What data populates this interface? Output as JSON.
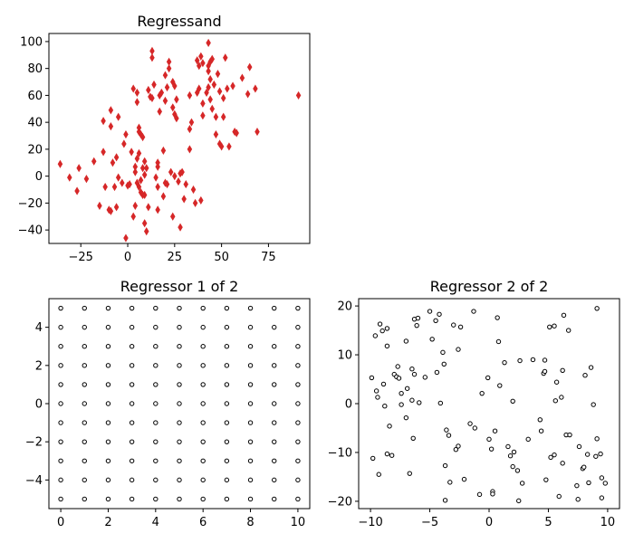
{
  "chart_data": [
    {
      "type": "scatter",
      "title": "Regressand",
      "xlabel": "",
      "ylabel": "",
      "xlim": [
        -42,
        97
      ],
      "ylim": [
        -50,
        106
      ],
      "xticks": [
        -25,
        0,
        25,
        50,
        75
      ],
      "yticks": [
        -40,
        -20,
        0,
        20,
        40,
        60,
        80,
        100
      ],
      "marker": "thin-diamond",
      "color": "#d62728",
      "edge_color": "#d62728",
      "grid": false,
      "points": [
        [
          -36,
          9
        ],
        [
          -31,
          -1
        ],
        [
          -27,
          -11
        ],
        [
          -26,
          6
        ],
        [
          -22,
          -2
        ],
        [
          -18,
          11
        ],
        [
          -15,
          -22
        ],
        [
          -13,
          18
        ],
        [
          -13,
          41
        ],
        [
          -12,
          -8
        ],
        [
          -10,
          -25
        ],
        [
          -9,
          -26
        ],
        [
          -9,
          37
        ],
        [
          -9,
          49
        ],
        [
          -8,
          10
        ],
        [
          -7,
          -8
        ],
        [
          -6,
          -23
        ],
        [
          -6,
          14
        ],
        [
          -5,
          -1
        ],
        [
          -5,
          44
        ],
        [
          -3,
          -5
        ],
        [
          -2,
          24
        ],
        [
          -1,
          -46
        ],
        [
          -1,
          31
        ],
        [
          0,
          -7
        ],
        [
          1,
          -6
        ],
        [
          2,
          18
        ],
        [
          3,
          -30
        ],
        [
          3,
          65
        ],
        [
          4,
          -22
        ],
        [
          4,
          3
        ],
        [
          4,
          7
        ],
        [
          5,
          -5
        ],
        [
          5,
          13
        ],
        [
          5,
          55
        ],
        [
          5,
          62
        ],
        [
          6,
          -8
        ],
        [
          6,
          17
        ],
        [
          6,
          33
        ],
        [
          6,
          36
        ],
        [
          7,
          -12
        ],
        [
          7,
          -3
        ],
        [
          7,
          31
        ],
        [
          8,
          6
        ],
        [
          8,
          -14
        ],
        [
          8,
          29
        ],
        [
          9,
          11
        ],
        [
          9,
          -35
        ],
        [
          9,
          -14
        ],
        [
          9,
          1
        ],
        [
          10,
          6
        ],
        [
          10,
          -41
        ],
        [
          11,
          -23
        ],
        [
          11,
          64
        ],
        [
          12,
          59
        ],
        [
          13,
          58
        ],
        [
          13,
          88
        ],
        [
          13,
          93
        ],
        [
          14,
          68
        ],
        [
          15,
          -1
        ],
        [
          16,
          7
        ],
        [
          16,
          -8
        ],
        [
          16,
          10
        ],
        [
          16,
          -25
        ],
        [
          17,
          48
        ],
        [
          17,
          60
        ],
        [
          18,
          62
        ],
        [
          19,
          19
        ],
        [
          19,
          -15
        ],
        [
          20,
          -5
        ],
        [
          20,
          56
        ],
        [
          20,
          75
        ],
        [
          21,
          -6
        ],
        [
          21,
          66
        ],
        [
          22,
          80
        ],
        [
          22,
          85
        ],
        [
          23,
          3
        ],
        [
          24,
          -30
        ],
        [
          24,
          51
        ],
        [
          24,
          70
        ],
        [
          25,
          46
        ],
        [
          25,
          0
        ],
        [
          25,
          67
        ],
        [
          26,
          57
        ],
        [
          26,
          43
        ],
        [
          27,
          -4
        ],
        [
          28,
          -38
        ],
        [
          28,
          2
        ],
        [
          29,
          3
        ],
        [
          30,
          -17
        ],
        [
          31,
          -6
        ],
        [
          33,
          20
        ],
        [
          33,
          35
        ],
        [
          33,
          60
        ],
        [
          34,
          40
        ],
        [
          35,
          -10
        ],
        [
          36,
          -20
        ],
        [
          37,
          62
        ],
        [
          37,
          86
        ],
        [
          38,
          82
        ],
        [
          38,
          65
        ],
        [
          39,
          -18
        ],
        [
          39,
          89
        ],
        [
          40,
          45
        ],
        [
          40,
          84
        ],
        [
          40,
          54
        ],
        [
          42,
          62
        ],
        [
          43,
          99
        ],
        [
          43,
          66
        ],
        [
          43,
          78
        ],
        [
          43,
          82
        ],
        [
          44,
          85
        ],
        [
          44,
          72
        ],
        [
          44,
          57
        ],
        [
          45,
          50
        ],
        [
          45,
          87
        ],
        [
          46,
          68
        ],
        [
          47,
          31
        ],
        [
          47,
          44
        ],
        [
          48,
          76
        ],
        [
          49,
          24
        ],
        [
          49,
          63
        ],
        [
          50,
          22
        ],
        [
          51,
          44
        ],
        [
          51,
          58
        ],
        [
          52,
          88
        ],
        [
          53,
          65
        ],
        [
          54,
          22
        ],
        [
          56,
          67
        ],
        [
          57,
          33
        ],
        [
          58,
          32
        ],
        [
          61,
          73
        ],
        [
          64,
          61
        ],
        [
          65,
          81
        ],
        [
          68,
          65
        ],
        [
          69,
          33
        ],
        [
          91,
          60
        ]
      ]
    },
    {
      "type": "scatter",
      "title": "Regressor 1 of 2",
      "xlabel": "",
      "ylabel": "",
      "xlim": [
        -0.5,
        10.5
      ],
      "ylim": [
        -5.5,
        5.5
      ],
      "xticks": [
        0,
        2,
        4,
        6,
        8,
        10
      ],
      "yticks": [
        -4,
        -2,
        0,
        2,
        4
      ],
      "marker": "circle-open",
      "edge_color": "#000000",
      "grid": false,
      "grid_points": {
        "x": [
          0,
          1,
          2,
          3,
          4,
          5,
          6,
          7,
          8,
          9,
          10
        ],
        "y": [
          5,
          4,
          3,
          2,
          1,
          0,
          -1,
          -2,
          -3,
          -4,
          -5
        ]
      }
    },
    {
      "type": "scatter",
      "title": "Regressor 2 of 2",
      "xlabel": "",
      "ylabel": "",
      "xlim": [
        -11,
        11
      ],
      "ylim": [
        -21.5,
        21.5
      ],
      "xticks": [
        -10,
        -5,
        0,
        5,
        10
      ],
      "yticks": [
        -20,
        -10,
        0,
        10,
        20
      ],
      "marker": "circle-open",
      "edge_color": "#000000",
      "grid": false,
      "points": [
        [
          -9.9,
          5.3
        ],
        [
          -9.6,
          13.9
        ],
        [
          -9.5,
          2.6
        ],
        [
          -9.8,
          -11.2
        ],
        [
          -9.4,
          1.3
        ],
        [
          -9.3,
          -14.5
        ],
        [
          -9.2,
          16.3
        ],
        [
          -9.0,
          14.9
        ],
        [
          -8.9,
          4.0
        ],
        [
          -8.8,
          -0.5
        ],
        [
          -8.6,
          15.4
        ],
        [
          -8.6,
          11.8
        ],
        [
          -8.6,
          -10.3
        ],
        [
          -8.4,
          -4.6
        ],
        [
          -8.2,
          -10.6
        ],
        [
          -8.0,
          6.0
        ],
        [
          -7.8,
          5.5
        ],
        [
          -7.7,
          7.6
        ],
        [
          -7.6,
          5.2
        ],
        [
          -7.4,
          -0.2
        ],
        [
          -7.4,
          2.1
        ],
        [
          -7.0,
          12.8
        ],
        [
          -6.9,
          3.1
        ],
        [
          -7.0,
          -2.9
        ],
        [
          -6.7,
          -14.3
        ],
        [
          -6.5,
          7.1
        ],
        [
          -6.5,
          0.7
        ],
        [
          -6.4,
          -7.1
        ],
        [
          -6.3,
          6.0
        ],
        [
          -6.3,
          17.3
        ],
        [
          -6.1,
          16.0
        ],
        [
          -6.0,
          17.5
        ],
        [
          -5.9,
          0.2
        ],
        [
          -5.4,
          5.4
        ],
        [
          -5.0,
          18.9
        ],
        [
          -4.8,
          13.2
        ],
        [
          -4.5,
          17.0
        ],
        [
          -4.4,
          6.4
        ],
        [
          -4.2,
          18.3
        ],
        [
          -4.1,
          0.1
        ],
        [
          -3.9,
          10.5
        ],
        [
          -3.8,
          8.1
        ],
        [
          -3.7,
          -12.7
        ],
        [
          -3.7,
          -19.8
        ],
        [
          -3.6,
          -5.4
        ],
        [
          -3.4,
          -6.5
        ],
        [
          -3.3,
          -16.1
        ],
        [
          -3.0,
          16.1
        ],
        [
          -2.8,
          -9.4
        ],
        [
          -2.6,
          11.1
        ],
        [
          -2.6,
          -8.7
        ],
        [
          -2.4,
          15.7
        ],
        [
          -2.1,
          -15.5
        ],
        [
          -1.6,
          -4.1
        ],
        [
          -1.3,
          18.9
        ],
        [
          -1.2,
          -5.0
        ],
        [
          -0.8,
          -18.6
        ],
        [
          -0.6,
          2.1
        ],
        [
          -0.1,
          5.3
        ],
        [
          0.0,
          -7.3
        ],
        [
          0.2,
          -9.3
        ],
        [
          0.3,
          -18.0
        ],
        [
          0.3,
          -18.5
        ],
        [
          0.5,
          -5.6
        ],
        [
          0.7,
          17.6
        ],
        [
          0.8,
          12.7
        ],
        [
          0.9,
          3.7
        ],
        [
          1.3,
          8.4
        ],
        [
          1.6,
          -8.8
        ],
        [
          1.8,
          -10.7
        ],
        [
          2.0,
          -12.9
        ],
        [
          2.0,
          0.5
        ],
        [
          2.1,
          -9.9
        ],
        [
          2.4,
          -13.7
        ],
        [
          2.5,
          -19.9
        ],
        [
          2.6,
          8.8
        ],
        [
          2.8,
          -16.3
        ],
        [
          3.3,
          -7.3
        ],
        [
          3.7,
          9.0
        ],
        [
          4.3,
          -3.3
        ],
        [
          4.4,
          -5.6
        ],
        [
          4.6,
          6.2
        ],
        [
          4.7,
          6.6
        ],
        [
          4.7,
          8.9
        ],
        [
          4.8,
          -15.6
        ],
        [
          5.1,
          15.7
        ],
        [
          5.2,
          -11.0
        ],
        [
          5.5,
          15.9
        ],
        [
          5.5,
          -10.5
        ],
        [
          5.6,
          0.6
        ],
        [
          5.7,
          4.4
        ],
        [
          5.9,
          -19.0
        ],
        [
          6.1,
          1.3
        ],
        [
          6.2,
          -12.2
        ],
        [
          6.2,
          6.8
        ],
        [
          6.3,
          18.1
        ],
        [
          6.5,
          -6.4
        ],
        [
          6.7,
          15.0
        ],
        [
          6.8,
          -6.4
        ],
        [
          7.4,
          -16.8
        ],
        [
          7.5,
          -19.6
        ],
        [
          7.6,
          -8.8
        ],
        [
          7.9,
          -13.3
        ],
        [
          8.0,
          -13.0
        ],
        [
          8.1,
          5.8
        ],
        [
          8.3,
          -10.4
        ],
        [
          8.4,
          -16.2
        ],
        [
          8.6,
          7.4
        ],
        [
          8.8,
          -0.2
        ],
        [
          9.0,
          -10.8
        ],
        [
          9.1,
          19.5
        ],
        [
          9.1,
          -7.2
        ],
        [
          9.4,
          -10.3
        ],
        [
          9.5,
          -15.2
        ],
        [
          9.5,
          -19.3
        ],
        [
          9.8,
          -16.3
        ]
      ]
    }
  ]
}
